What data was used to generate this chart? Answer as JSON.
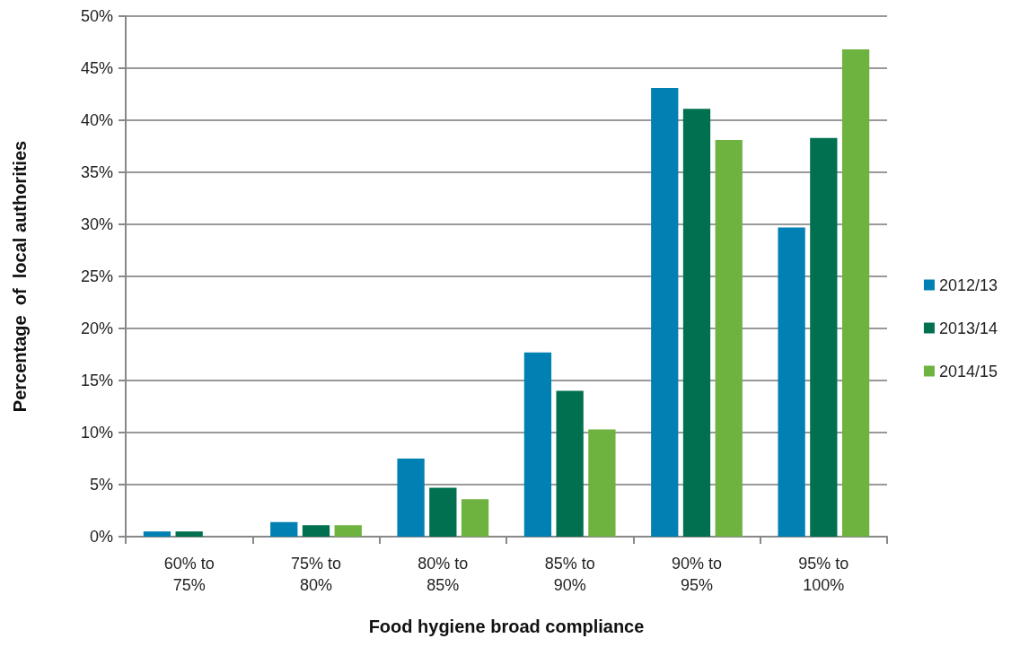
{
  "chart_data": {
    "type": "bar",
    "xlabel": "Food hygiene broad compliance",
    "ylabel": "Percentage  of  local authorities",
    "categories": [
      "60% to\n75%",
      "75% to\n80%",
      "80% to\n85%",
      "85% to\n90%",
      "90% to\n95%",
      "95% to\n100%"
    ],
    "series": [
      {
        "name": "2012/13",
        "color": "#0080b3",
        "values": [
          0.5,
          1.4,
          7.5,
          17.7,
          43.1,
          29.7
        ]
      },
      {
        "name": "2013/14",
        "color": "#007050",
        "values": [
          0.5,
          1.1,
          4.7,
          14.0,
          41.1,
          38.3
        ]
      },
      {
        "name": "2014/15",
        "color": "#6eb340",
        "values": [
          0,
          1.1,
          3.6,
          10.3,
          38.1,
          46.8
        ]
      }
    ],
    "ylim": [
      0,
      50
    ],
    "yticks": [
      {
        "value": 0,
        "label": "0%"
      },
      {
        "value": 5,
        "label": "5%"
      },
      {
        "value": 10,
        "label": "10%"
      },
      {
        "value": 15,
        "label": "15%"
      },
      {
        "value": 20,
        "label": "20%"
      },
      {
        "value": 25,
        "label": "25%"
      },
      {
        "value": 30,
        "label": "30%"
      },
      {
        "value": 35,
        "label": "35%"
      },
      {
        "value": 40,
        "label": "40%"
      },
      {
        "value": 45,
        "label": "45%"
      },
      {
        "value": 50,
        "label": "50%"
      }
    ],
    "grid": "y",
    "legend": "right"
  }
}
